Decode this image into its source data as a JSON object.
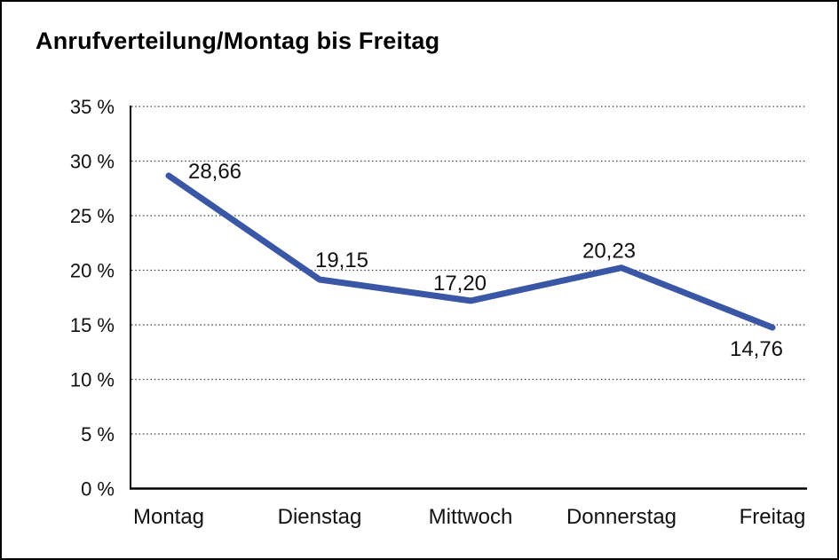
{
  "frame": {
    "border_color": "#000000",
    "background_color": "#ffffff"
  },
  "chart_data": {
    "type": "line",
    "title": "Anrufverteilung/Montag bis Freitag",
    "categories": [
      "Montag",
      "Dienstag",
      "Mittwoch",
      "Donnerstag",
      "Freitag"
    ],
    "values": [
      28.66,
      19.15,
      17.2,
      20.23,
      14.76
    ],
    "value_labels": [
      "28,66",
      "19,15",
      "17,20",
      "20,23",
      "14,76"
    ],
    "xlabel": "",
    "ylabel": "",
    "ylim": [
      0,
      35
    ],
    "ytick_values": [
      0,
      5,
      10,
      15,
      20,
      25,
      30,
      35
    ],
    "ytick_labels": [
      "0 %",
      "5 %",
      "10 %",
      "15 %",
      "20 %",
      "25 %",
      "30 %",
      "35 %"
    ],
    "grid": "horizontal-dotted",
    "legend": "none",
    "line_color": "#3A57A6",
    "axis_color": "#000000",
    "gridline_color": "#3c3c3c",
    "text_color": "#111111"
  }
}
